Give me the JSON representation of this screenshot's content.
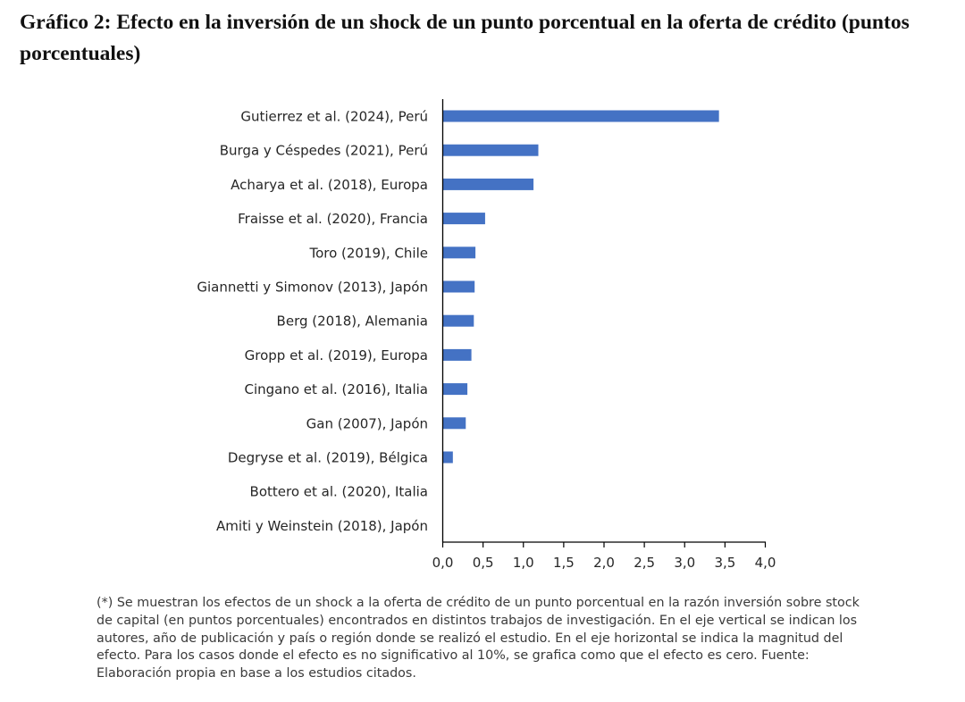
{
  "title": "Gráfico 2: Efecto en la inversión de un shock de un punto porcentual en la oferta de crédito (puntos porcentuales)",
  "chart_data": {
    "type": "bar",
    "orientation": "horizontal",
    "categories": [
      "Gutierrez et al. (2024), Perú",
      "Burga y Céspedes (2021), Perú",
      "Acharya et al. (2018), Europa",
      "Fraisse et al. (2020), Francia",
      "Toro (2019), Chile",
      "Giannetti y Simonov (2013), Japón",
      "Berg (2018), Alemania",
      "Gropp et al. (2019), Europa",
      "Cingano et al. (2016), Italia",
      "Gan (2007), Japón",
      "Degryse et al. (2019), Bélgica",
      "Bottero et al. (2020), Italia",
      "Amiti y Weinstein (2018), Japón"
    ],
    "values": [
      3.42,
      1.18,
      1.12,
      0.52,
      0.4,
      0.39,
      0.38,
      0.35,
      0.3,
      0.28,
      0.12,
      0,
      0
    ],
    "xlim": [
      0,
      4
    ],
    "xticks": [
      "0,0",
      "0,5",
      "1,0",
      "1,5",
      "2,0",
      "2,5",
      "3,0",
      "3,5",
      "4,0"
    ],
    "xlabel": "",
    "ylabel": "",
    "bar_color": "#4472C4",
    "grid": false,
    "legend": false
  },
  "note": "(*) Se muestran los efectos de un shock a la oferta de crédito de un punto porcentual en la razón inversión sobre stock de capital (en puntos porcentuales) encontrados en distintos trabajos de investigación. En el eje vertical se indican los autores, año de publicación y país o región donde se realizó el estudio. En el eje horizontal se indica la magnitud del efecto. Para los casos donde el efecto es no significativo al 10%, se grafica como que el efecto es cero. Fuente: Elaboración propia en base a los estudios citados."
}
